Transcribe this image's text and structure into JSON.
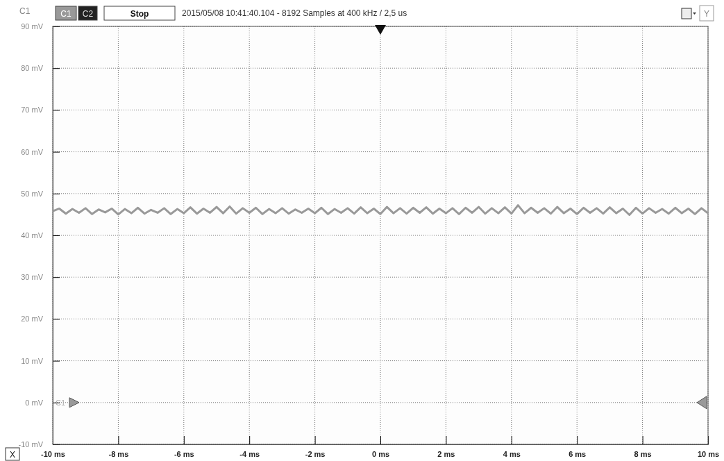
{
  "chart_data": {
    "type": "line",
    "title": "2015/05/08 10:41:40.104 - 8192 Samples at 400 kHz / 2,5 us",
    "ylabel": "C1",
    "annotations": [
      "C1",
      "C2",
      "Stop",
      "X",
      "Y"
    ],
    "x": [
      -10,
      -9.8,
      -9.6,
      -9.4,
      -9.2,
      -9,
      -8.8,
      -8.6,
      -8.4,
      -8.2,
      -8,
      -7.8,
      -7.6,
      -7.4,
      -7.2,
      -7,
      -6.8,
      -6.6,
      -6.4,
      -6.2,
      -6,
      -5.8,
      -5.6,
      -5.4,
      -5.2,
      -5,
      -4.8,
      -4.6,
      -4.4,
      -4.2,
      -4,
      -3.8,
      -3.6,
      -3.4,
      -3.2,
      -3,
      -2.8,
      -2.6,
      -2.4,
      -2.2,
      -2,
      -1.8,
      -1.6,
      -1.4,
      -1.2,
      -1,
      -0.8,
      -0.6,
      -0.4,
      -0.2,
      0,
      0.2,
      0.4,
      0.6,
      0.8,
      1,
      1.2,
      1.4,
      1.6,
      1.8,
      2,
      2.2,
      2.4,
      2.6,
      2.8,
      3,
      3.2,
      3.4,
      3.6,
      3.8,
      4,
      4.2,
      4.4,
      4.6,
      4.8,
      5,
      5.2,
      5.4,
      5.6,
      5.8,
      6,
      6.2,
      6.4,
      6.6,
      6.8,
      7,
      7.2,
      7.4,
      7.6,
      7.8,
      8,
      8.2,
      8.4,
      8.6,
      8.8,
      9,
      9.2,
      9.4,
      9.6,
      9.8,
      10
    ],
    "series": [
      {
        "name": "C1",
        "color": "#999999",
        "values": [
          45.8,
          46.4,
          45.2,
          46.3,
          45.4,
          46.5,
          45.1,
          46.2,
          45.5,
          46.4,
          45.0,
          46.3,
          45.3,
          46.6,
          45.2,
          46.1,
          45.4,
          46.5,
          45.1,
          46.3,
          45.3,
          46.7,
          45.2,
          46.4,
          45.4,
          46.8,
          45.3,
          46.9,
          45.2,
          46.5,
          45.4,
          46.6,
          45.1,
          46.3,
          45.3,
          46.5,
          45.2,
          46.2,
          45.4,
          46.4,
          45.3,
          46.6,
          45.1,
          46.3,
          45.4,
          46.5,
          45.2,
          46.7,
          45.3,
          46.4,
          45.1,
          46.8,
          45.3,
          46.5,
          45.2,
          46.6,
          45.4,
          46.7,
          45.2,
          46.4,
          45.3,
          46.5,
          45.1,
          46.6,
          45.4,
          46.8,
          45.2,
          46.5,
          45.3,
          46.7,
          45.2,
          47.2,
          45.3,
          46.6,
          45.4,
          46.5,
          45.2,
          46.8,
          45.3,
          46.4,
          45.1,
          46.6,
          45.4,
          46.5,
          45.2,
          46.7,
          45.3,
          46.4,
          44.9,
          46.6,
          45.2,
          46.5,
          45.4,
          46.3,
          45.2,
          46.6,
          45.3,
          46.4,
          45.1,
          46.5,
          45.3
        ]
      }
    ],
    "xlim": [
      -10,
      10
    ],
    "xticks": [
      {
        "value": -10,
        "label": "-10 ms"
      },
      {
        "value": -8,
        "label": "-8 ms"
      },
      {
        "value": -6,
        "label": "-6 ms"
      },
      {
        "value": -4,
        "label": "-4 ms"
      },
      {
        "value": -2,
        "label": "-2 ms"
      },
      {
        "value": 0,
        "label": "0 ms"
      },
      {
        "value": 2,
        "label": "2 ms"
      },
      {
        "value": 4,
        "label": "4 ms"
      },
      {
        "value": 6,
        "label": "6 ms"
      },
      {
        "value": 8,
        "label": "8 ms"
      },
      {
        "value": 10,
        "label": "10 ms"
      }
    ],
    "ylim": [
      -10,
      90
    ],
    "yticks": [
      {
        "value": -10,
        "label": "-10 mV"
      },
      {
        "value": 0,
        "label": "0 mV"
      },
      {
        "value": 10,
        "label": "10 mV"
      },
      {
        "value": 20,
        "label": "20 mV"
      },
      {
        "value": 30,
        "label": "30 mV"
      },
      {
        "value": 40,
        "label": "40 mV"
      },
      {
        "value": 50,
        "label": "50 mV"
      },
      {
        "value": 60,
        "label": "60 mV"
      },
      {
        "value": 70,
        "label": "70 mV"
      },
      {
        "value": 80,
        "label": "80 mV"
      },
      {
        "value": 90,
        "label": "90 mV"
      }
    ],
    "grid": true,
    "legend": "bottom left",
    "marker": "none",
    "line_style": "solid"
  }
}
